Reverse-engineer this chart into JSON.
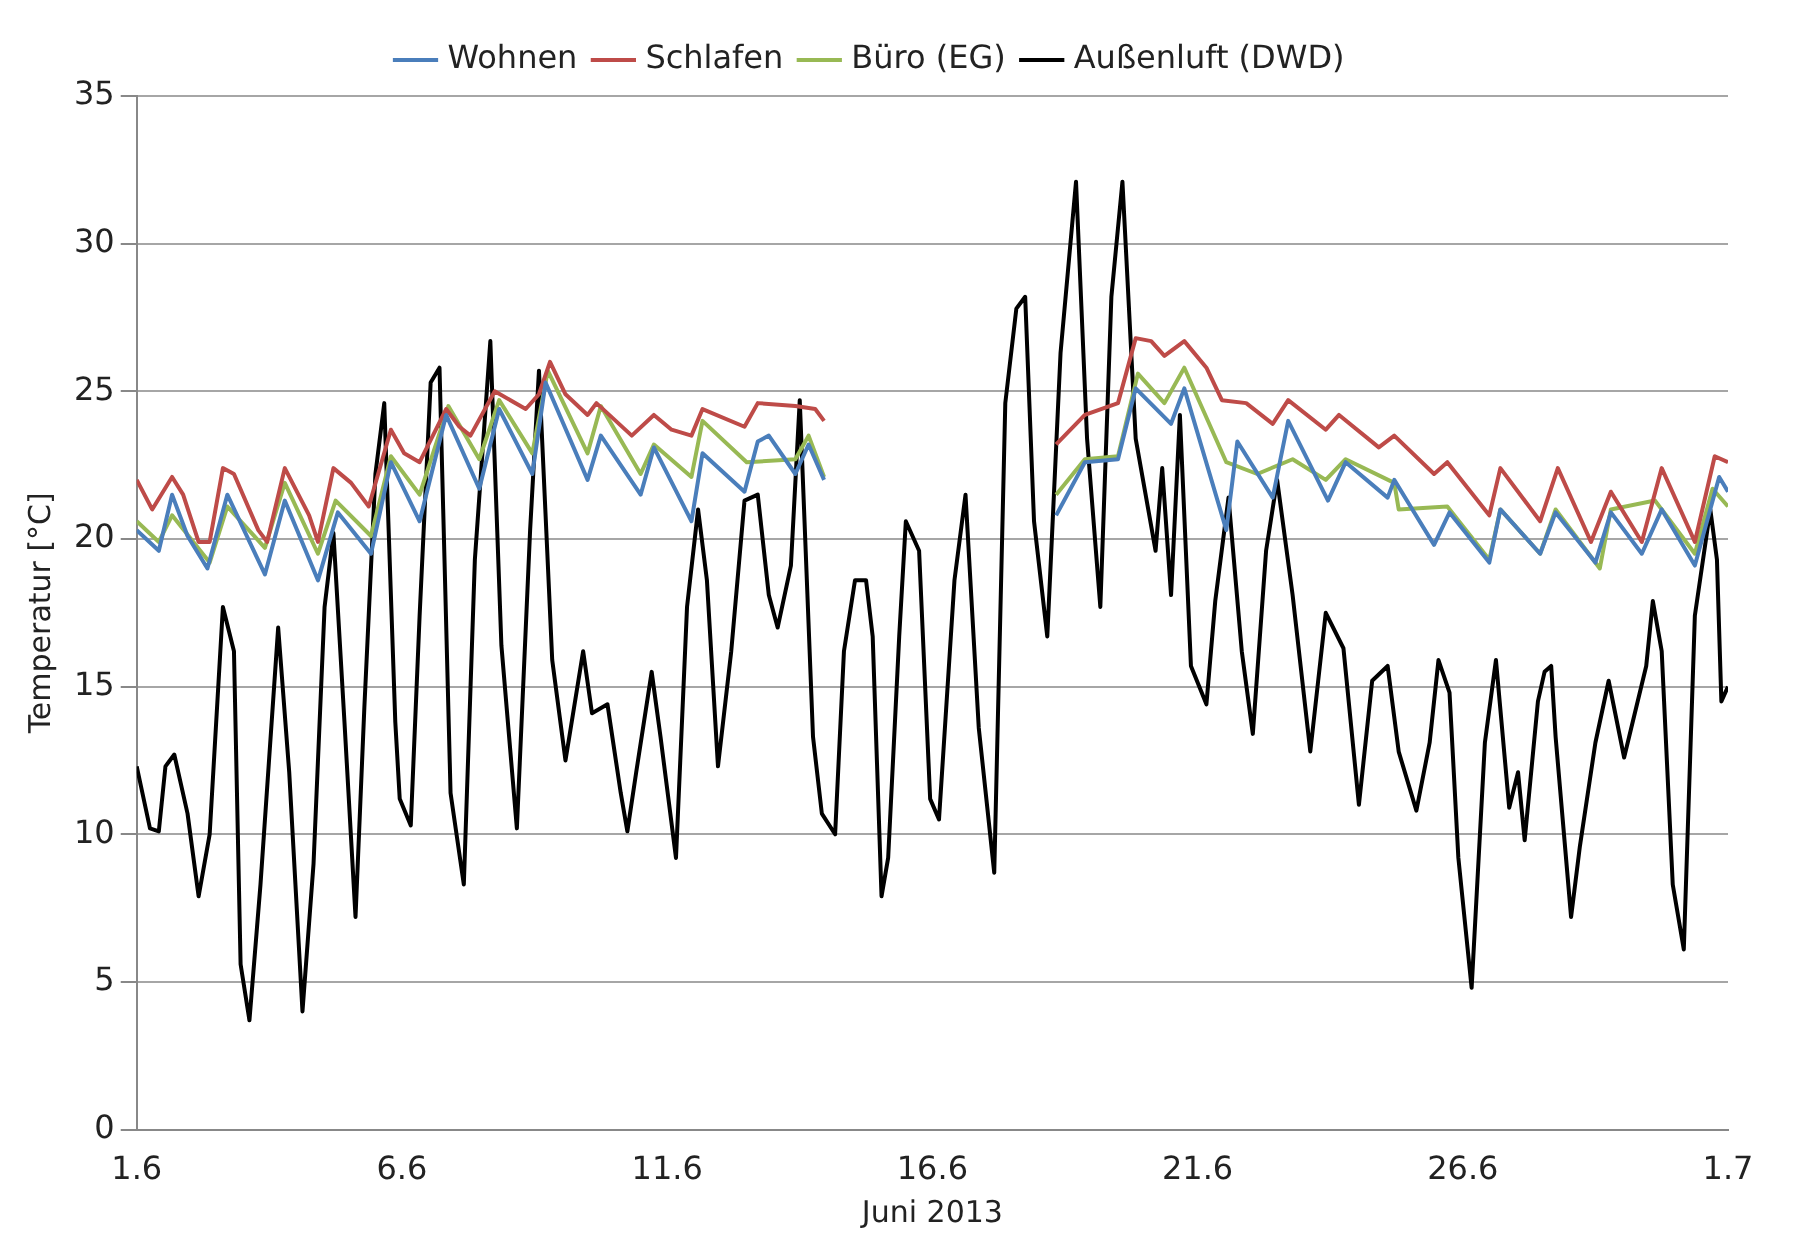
{
  "chart_data": {
    "type": "line",
    "xlabel": "Juni 2013",
    "ylabel": "Temperatur [°C]",
    "xlim": [
      "2013-06-01",
      "2013-07-01"
    ],
    "xticks": [
      {
        "value": "2013-06-01",
        "label": "1.6"
      },
      {
        "value": "2013-06-06",
        "label": "6.6"
      },
      {
        "value": "2013-06-11",
        "label": "11.6"
      },
      {
        "value": "2013-06-16",
        "label": "16.6"
      },
      {
        "value": "2013-06-21",
        "label": "21.6"
      },
      {
        "value": "2013-06-26",
        "label": "26.6"
      },
      {
        "value": "2013-07-01",
        "label": "1.7"
      }
    ],
    "ylim": [
      0,
      35
    ],
    "yticks": [
      0,
      5,
      10,
      15,
      20,
      25,
      30,
      35
    ],
    "grid": "y",
    "legend": "top",
    "marker": "none",
    "line_style": "solid",
    "series": [
      {
        "name": "Wohnen",
        "color": "#4a7ebb",
        "x": [
          "2013-06-01T00:00",
          "2013-06-01T10:00",
          "2013-06-01T16:00",
          "2013-06-01T23:00",
          "2013-06-02T08:00",
          "2013-06-02T17:00",
          "2013-06-03T10:00",
          "2013-06-03T19:00",
          "2013-06-04T10:00",
          "2013-06-04T19:00",
          "2013-06-05T10:00",
          "2013-06-05T19:00",
          "2013-06-06T08:00",
          "2013-06-06T20:00",
          "2013-06-07T11:00",
          "2013-06-07T20:00",
          "2013-06-08T11:00",
          "2013-06-08T17:00",
          "2013-06-09T12:00",
          "2013-06-09T18:00",
          "2013-06-10T12:00",
          "2013-06-10T18:00",
          "2013-06-11T11:00",
          "2013-06-11T16:00",
          "2013-06-12T11:00",
          "2013-06-12T17:00",
          "2013-06-12T22:00",
          "2013-06-13T10:00",
          "2013-06-13T16:00",
          "2013-06-13T23:00",
          "2013-06-16T00:00",
          "2013-06-18T08:00",
          "2013-06-18T21:00",
          "2013-06-19T12:00",
          "2013-06-19T20:00",
          "2013-06-20T12:00",
          "2013-06-20T18:00",
          "2013-06-21T13:00",
          "2013-06-21T18:00",
          "2013-06-22T10:00",
          "2013-06-22T17:00",
          "2013-06-23T11:00",
          "2013-06-23T19:00",
          "2013-06-24T14:00",
          "2013-06-24T17:00",
          "2013-06-25T11:00",
          "2013-06-25T18:00",
          "2013-06-26T12:00",
          "2013-06-26T17:00",
          "2013-06-27T11:00",
          "2013-06-27T18:00",
          "2013-06-28T12:00",
          "2013-06-28T19:00",
          "2013-06-29T09:00",
          "2013-06-29T18:00",
          "2013-06-30T09:00",
          "2013-06-30T20:00",
          "2013-07-01T00:00"
        ],
        "values": [
          20.3,
          19.6,
          21.5,
          20.1,
          19.0,
          21.5,
          18.8,
          21.3,
          18.6,
          20.9,
          19.5,
          22.6,
          20.6,
          24.2,
          21.7,
          24.4,
          22.2,
          25.3,
          22.0,
          23.5,
          21.5,
          23.1,
          20.6,
          22.9,
          21.6,
          23.3,
          23.5,
          22.2,
          23.2,
          22.0,
          null,
          20.8,
          22.6,
          22.7,
          25.1,
          23.9,
          25.1,
          20.3,
          23.3,
          21.4,
          24.0,
          21.3,
          22.6,
          21.4,
          22.0,
          19.8,
          20.9,
          19.2,
          21.0,
          19.5,
          20.9,
          19.2,
          20.9,
          19.5,
          21.0,
          19.1,
          22.1,
          21.6
        ]
      },
      {
        "name": "Schlafen",
        "color": "#be4b48",
        "x": [
          "2013-06-01T00:00",
          "2013-06-01T07:00",
          "2013-06-01T16:00",
          "2013-06-01T21:00",
          "2013-06-02T04:00",
          "2013-06-02T09:00",
          "2013-06-02T15:00",
          "2013-06-02T20:00",
          "2013-06-03T07:00",
          "2013-06-03T11:00",
          "2013-06-03T19:00",
          "2013-06-04T06:00",
          "2013-06-04T10:00",
          "2013-06-04T17:00",
          "2013-06-05T01:00",
          "2013-06-05T09:00",
          "2013-06-05T19:00",
          "2013-06-06T01:00",
          "2013-06-06T08:00",
          "2013-06-06T20:00",
          "2013-06-07T02:00",
          "2013-06-07T07:00",
          "2013-06-07T18:00",
          "2013-06-08T08:00",
          "2013-06-08T14:00",
          "2013-06-08T19:00",
          "2013-06-09T02:00",
          "2013-06-09T12:00",
          "2013-06-09T16:00",
          "2013-06-10T08:00",
          "2013-06-10T18:00",
          "2013-06-11T02:00",
          "2013-06-11T11:00",
          "2013-06-11T16:00",
          "2013-06-12T11:00",
          "2013-06-12T17:00",
          "2013-06-13T10:00",
          "2013-06-13T19:00",
          "2013-06-13T23:00",
          "2013-06-16T00:00",
          "2013-06-18T08:00",
          "2013-06-18T21:00",
          "2013-06-19T12:00",
          "2013-06-19T20:00",
          "2013-06-20T03:00",
          "2013-06-20T09:00",
          "2013-06-20T18:00",
          "2013-06-21T04:00",
          "2013-06-21T11:00",
          "2013-06-21T22:00",
          "2013-06-22T10:00",
          "2013-06-22T17:00",
          "2013-06-23T10:00",
          "2013-06-23T16:00",
          "2013-06-24T10:00",
          "2013-06-24T17:00",
          "2013-06-25T11:00",
          "2013-06-25T17:00",
          "2013-06-26T12:00",
          "2013-06-26T17:00",
          "2013-06-27T11:00",
          "2013-06-27T19:00",
          "2013-06-28T10:00",
          "2013-06-28T19:00",
          "2013-06-29T09:00",
          "2013-06-29T18:00",
          "2013-06-30T09:00",
          "2013-06-30T18:00",
          "2013-07-01T00:00"
        ],
        "values": [
          22.0,
          21.0,
          22.1,
          21.5,
          19.9,
          19.9,
          22.4,
          22.2,
          20.3,
          19.9,
          22.4,
          20.8,
          19.9,
          22.4,
          21.9,
          21.1,
          23.7,
          22.9,
          22.6,
          24.4,
          23.8,
          23.5,
          25.0,
          24.4,
          24.9,
          26.0,
          24.9,
          24.2,
          24.6,
          23.5,
          24.2,
          23.7,
          23.5,
          24.4,
          23.8,
          24.6,
          24.5,
          24.4,
          24.0,
          null,
          23.2,
          24.2,
          24.6,
          26.8,
          26.7,
          26.2,
          26.7,
          25.8,
          24.7,
          24.6,
          23.9,
          24.7,
          23.7,
          24.2,
          23.1,
          23.5,
          22.2,
          22.6,
          20.8,
          22.4,
          20.6,
          22.4,
          19.9,
          21.6,
          19.9,
          22.4,
          19.9,
          22.8,
          22.6
        ]
      },
      {
        "name": "Büro (EG)",
        "color": "#98b954",
        "x": [
          "2013-06-01T00:00",
          "2013-06-01T10:00",
          "2013-06-01T16:00",
          "2013-06-02T09:00",
          "2013-06-02T17:00",
          "2013-06-03T10:00",
          "2013-06-03T19:00",
          "2013-06-04T10:00",
          "2013-06-04T18:00",
          "2013-06-05T10:00",
          "2013-06-05T19:00",
          "2013-06-06T08:00",
          "2013-06-06T21:00",
          "2013-06-07T11:00",
          "2013-06-07T20:00",
          "2013-06-08T11:00",
          "2013-06-08T18:00",
          "2013-06-09T12:00",
          "2013-06-09T18:00",
          "2013-06-10T12:00",
          "2013-06-10T18:00",
          "2013-06-11T11:00",
          "2013-06-11T16:00",
          "2013-06-12T12:00",
          "2013-06-13T10:00",
          "2013-06-13T16:00",
          "2013-06-13T23:00",
          "2013-06-16T00:00",
          "2013-06-18T08:00",
          "2013-06-18T21:00",
          "2013-06-19T12:00",
          "2013-06-19T21:00",
          "2013-06-20T09:00",
          "2013-06-20T18:00",
          "2013-06-21T13:00",
          "2013-06-22T03:00",
          "2013-06-22T19:00",
          "2013-06-23T10:00",
          "2013-06-23T19:00",
          "2013-06-24T17:00",
          "2013-06-24T19:00",
          "2013-06-25T17:00",
          "2013-06-26T12:00",
          "2013-06-26T17:00",
          "2013-06-27T11:00",
          "2013-06-27T18:00",
          "2013-06-28T14:00",
          "2013-06-28T19:00",
          "2013-06-29T15:00",
          "2013-06-30T09:00",
          "2013-06-30T17:00",
          "2013-07-01T00:00"
        ],
        "values": [
          20.6,
          19.9,
          20.8,
          19.2,
          21.1,
          19.7,
          21.9,
          19.5,
          21.3,
          20.1,
          22.8,
          21.5,
          24.5,
          22.7,
          24.7,
          22.9,
          25.7,
          22.9,
          24.5,
          22.2,
          23.2,
          22.1,
          24.0,
          22.6,
          22.7,
          23.5,
          22.1,
          null,
          21.5,
          22.7,
          22.8,
          25.6,
          24.6,
          25.8,
          22.6,
          22.2,
          22.7,
          22.0,
          22.7,
          21.9,
          21.0,
          21.1,
          19.3,
          21.0,
          19.5,
          21.0,
          19.0,
          21.0,
          21.3,
          19.5,
          21.7,
          21.1
        ]
      },
      {
        "name": "Außenluft (DWD)",
        "color": "#000000",
        "x": [
          "2013-06-01T00:00",
          "2013-06-01T06:00",
          "2013-06-01T10:00",
          "2013-06-01T13:00",
          "2013-06-01T17:00",
          "2013-06-01T23:00",
          "2013-06-02T04:00",
          "2013-06-02T09:00",
          "2013-06-02T15:00",
          "2013-06-02T20:00",
          "2013-06-02T23:00",
          "2013-06-03T03:00",
          "2013-06-03T08:00",
          "2013-06-03T16:00",
          "2013-06-03T21:00",
          "2013-06-04T03:00",
          "2013-06-04T08:00",
          "2013-06-04T13:00",
          "2013-06-04T17:00",
          "2013-06-04T22:00",
          "2013-06-05T03:00",
          "2013-06-05T07:00",
          "2013-06-05T12:00",
          "2013-06-05T16:00",
          "2013-06-05T21:00",
          "2013-06-05T23:00",
          "2013-06-06T04:00",
          "2013-06-06T08:00",
          "2013-06-06T13:00",
          "2013-06-06T17:00",
          "2013-06-06T22:00",
          "2013-06-07T04:00",
          "2013-06-07T09:00",
          "2013-06-07T16:00",
          "2013-06-07T21:00",
          "2013-06-08T04:00",
          "2013-06-08T10:00",
          "2013-06-08T14:00",
          "2013-06-08T20:00",
          "2013-06-09T02:00",
          "2013-06-09T10:00",
          "2013-06-09T14:00",
          "2013-06-09T21:00",
          "2013-06-10T03:00",
          "2013-06-10T06:00",
          "2013-06-10T10:00",
          "2013-06-10T17:00",
          "2013-06-10T21:00",
          "2013-06-11T04:00",
          "2013-06-11T09:00",
          "2013-06-11T14:00",
          "2013-06-11T18:00",
          "2013-06-11T23:00",
          "2013-06-12T05:00",
          "2013-06-12T11:00",
          "2013-06-12T17:00",
          "2013-06-12T22:00",
          "2013-06-13T02:00",
          "2013-06-13T08:00",
          "2013-06-13T12:00",
          "2013-06-13T18:00",
          "2013-06-13T22:00",
          "2013-06-14T04:00",
          "2013-06-14T08:00",
          "2013-06-14T13:00",
          "2013-06-14T18:00",
          "2013-06-14T21:00",
          "2013-06-15T01:00",
          "2013-06-15T04:00",
          "2013-06-15T09:00",
          "2013-06-15T12:00",
          "2013-06-15T18:00",
          "2013-06-15T23:00",
          "2013-06-16T03:00",
          "2013-06-16T10:00",
          "2013-06-16T15:00",
          "2013-06-16T21:00",
          "2013-06-17T04:00",
          "2013-06-17T09:00",
          "2013-06-17T14:00",
          "2013-06-17T18:00",
          "2013-06-17T22:00",
          "2013-06-18T04:00",
          "2013-06-18T10:00",
          "2013-06-18T17:00",
          "2013-06-18T22:00",
          "2013-06-19T04:00",
          "2013-06-19T09:00",
          "2013-06-19T14:00",
          "2013-06-19T20:00",
          "2013-06-20T05:00",
          "2013-06-20T08:00",
          "2013-06-20T12:00",
          "2013-06-20T16:00",
          "2013-06-20T21:00",
          "2013-06-21T04:00",
          "2013-06-21T08:00",
          "2013-06-21T14:00",
          "2013-06-21T20:00",
          "2013-06-22T01:00",
          "2013-06-22T07:00",
          "2013-06-22T12:00",
          "2013-06-22T19:00",
          "2013-06-23T03:00",
          "2013-06-23T10:00",
          "2013-06-23T18:00",
          "2013-06-24T01:00",
          "2013-06-24T07:00",
          "2013-06-24T14:00",
          "2013-06-24T19:00",
          "2013-06-25T03:00",
          "2013-06-25T09:00",
          "2013-06-25T13:00",
          "2013-06-25T18:00",
          "2013-06-25T22:00",
          "2013-06-26T04:00",
          "2013-06-26T10:00",
          "2013-06-26T15:00",
          "2013-06-26T21:00",
          "2013-06-27T01:00",
          "2013-06-27T04:00",
          "2013-06-27T10:00",
          "2013-06-27T13:00",
          "2013-06-27T16:00",
          "2013-06-27T18:00",
          "2013-06-28T01:00",
          "2013-06-28T05:00",
          "2013-06-28T12:00",
          "2013-06-28T18:00",
          "2013-06-29T01:00",
          "2013-06-29T11:00",
          "2013-06-29T14:00",
          "2013-06-29T18:00",
          "2013-06-29T23:00",
          "2013-06-30T04:00",
          "2013-06-30T09:00",
          "2013-06-30T16:00",
          "2013-06-30T19:00",
          "2013-06-30T21:00",
          "2013-07-01T00:00"
        ],
        "values": [
          12.3,
          10.2,
          10.1,
          12.3,
          12.7,
          10.7,
          7.9,
          10.0,
          17.7,
          16.2,
          5.6,
          3.7,
          8.3,
          17.0,
          12.1,
          4.0,
          9.0,
          17.7,
          20.2,
          13.8,
          7.2,
          14.3,
          22.2,
          24.6,
          13.8,
          11.2,
          10.3,
          17.4,
          25.3,
          25.8,
          11.4,
          8.3,
          19.3,
          26.7,
          16.4,
          10.2,
          20.3,
          25.7,
          15.9,
          12.5,
          16.2,
          14.1,
          14.4,
          11.4,
          10.1,
          12.1,
          15.5,
          13.3,
          9.2,
          17.7,
          21.0,
          18.6,
          12.3,
          16.2,
          21.3,
          21.5,
          18.1,
          17.0,
          19.1,
          24.7,
          13.3,
          10.7,
          10.0,
          16.2,
          18.6,
          18.6,
          16.7,
          7.9,
          9.2,
          16.7,
          20.6,
          19.6,
          11.2,
          10.5,
          18.6,
          21.5,
          13.6,
          8.7,
          24.6,
          27.8,
          28.2,
          20.6,
          16.7,
          26.3,
          32.1,
          23.4,
          17.7,
          28.2,
          32.1,
          23.4,
          19.6,
          22.4,
          18.1,
          24.2,
          15.7,
          14.4,
          17.9,
          21.4,
          16.2,
          13.4,
          19.6,
          22.0,
          18.1,
          12.8,
          17.5,
          16.3,
          11.0,
          15.2,
          15.7,
          12.8,
          10.8,
          13.1,
          15.9,
          14.8,
          9.2,
          4.8,
          13.1,
          15.9,
          10.9,
          12.1,
          9.8,
          14.5,
          15.5,
          15.7,
          13.3,
          7.2,
          9.6,
          13.1,
          15.2,
          12.6,
          15.7,
          17.9,
          16.2,
          8.3,
          6.1,
          17.4,
          21.0,
          19.3,
          14.5,
          15.0
        ]
      }
    ]
  }
}
